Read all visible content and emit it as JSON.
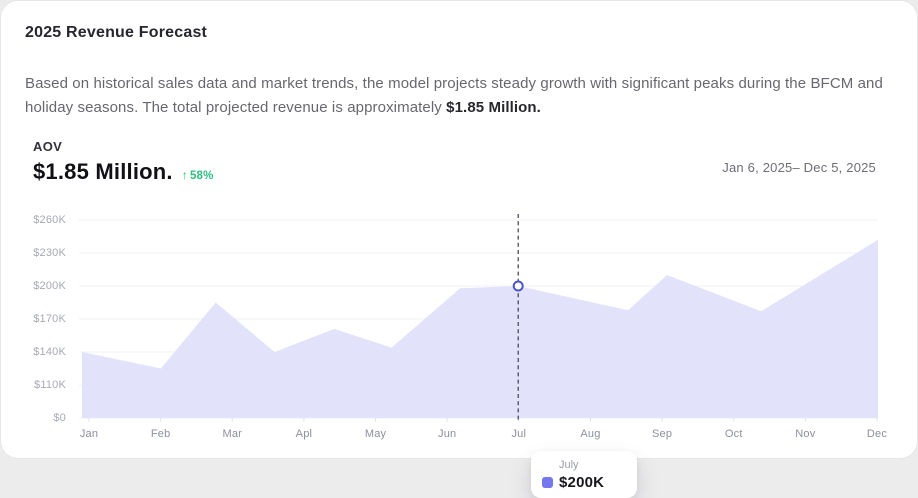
{
  "header": {
    "title": "2025 Revenue Forecast",
    "description_before": "Based on historical sales data and market trends, the model projects steady growth with significant peaks during the BFCM and holiday seasons. The total projected revenue is approximately ",
    "description_bold": "$1.85 Million."
  },
  "kpi": {
    "label": "AOV",
    "value": "$1.85 Million.",
    "change_arrow": "↑",
    "change": "58%",
    "change_color": "#2fbe80",
    "date_range": "Jan 6, 2025– Dec 5, 2025"
  },
  "tooltip": {
    "title": "July",
    "value": "$200K",
    "swatch_color": "#7477ed"
  },
  "chart_data": {
    "type": "area",
    "title": "AOV monthly forecast",
    "x_tick_labels": [
      "Jan",
      "Feb",
      "Mar",
      "Apl",
      "May",
      "Jun",
      "Jul",
      "Aug",
      "Sep",
      "Oct",
      "Nov",
      "Dec"
    ],
    "y_tick_labels": [
      "$260K",
      "$230K",
      "$200K",
      "$170K",
      "$140K",
      "$110K",
      "$0"
    ],
    "y_tick_values": [
      260,
      230,
      200,
      170,
      140,
      110,
      0
    ],
    "unit": "USD thousands",
    "grid": true,
    "legend": "none",
    "fill_color": "#e2e3fb",
    "dashed_line_color": "#3c3c52",
    "marker_stroke_color": "#4d55cd",
    "grid_color": "#f0f1f5",
    "series": [
      {
        "name": "AOV",
        "points": [
          {
            "x": 0.0,
            "value": 140
          },
          {
            "x": 0.099,
            "value": 125
          },
          {
            "x": 0.168,
            "value": 185
          },
          {
            "x": 0.242,
            "value": 140
          },
          {
            "x": 0.317,
            "value": 161
          },
          {
            "x": 0.389,
            "value": 144
          },
          {
            "x": 0.475,
            "value": 198
          },
          {
            "x": 0.548,
            "value": 200
          },
          {
            "x": 0.686,
            "value": 178
          },
          {
            "x": 0.735,
            "value": 210
          },
          {
            "x": 0.853,
            "value": 177
          },
          {
            "x": 1.0,
            "value": 242
          }
        ]
      }
    ],
    "highlight": {
      "month_label": "Jul",
      "x": 0.548,
      "value": 200
    }
  }
}
